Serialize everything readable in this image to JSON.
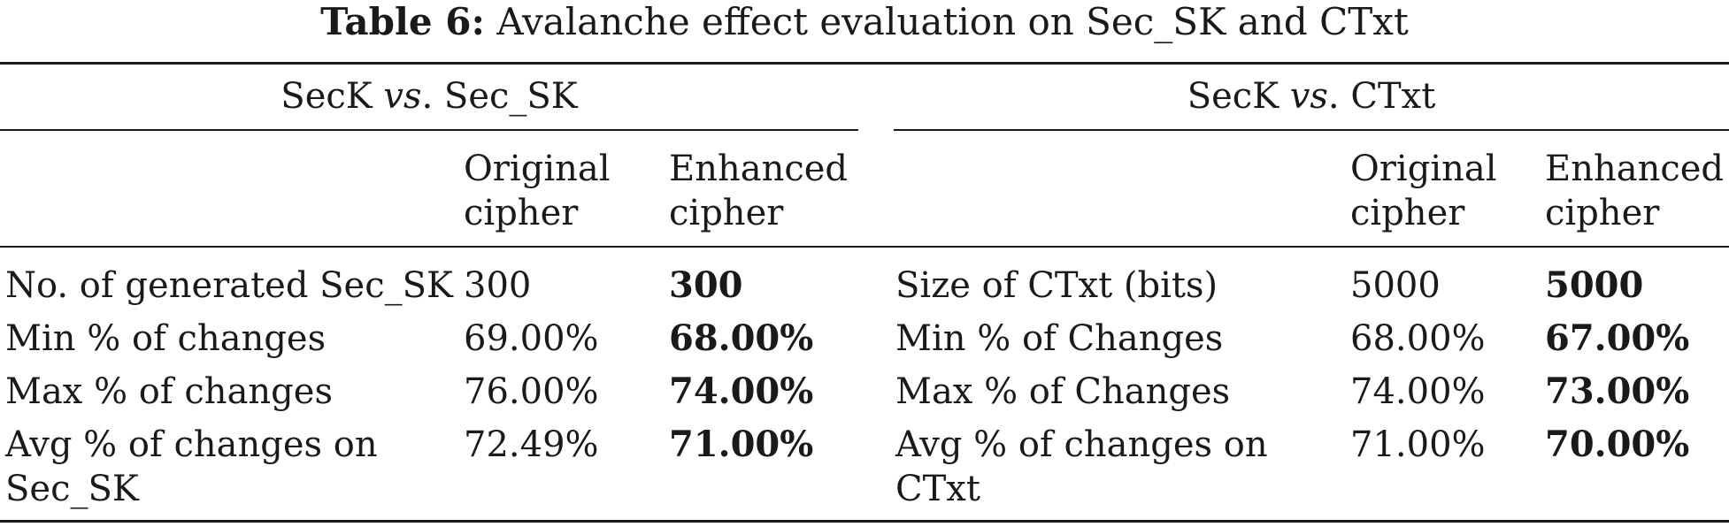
{
  "caption": {
    "label": "Table 6:",
    "text": "Avalanche effect evaluation on Sec_SK and CTxt"
  },
  "left_group": {
    "title_pre": "SecK ",
    "title_vs": "vs",
    "title_post": ". Sec_SK",
    "col_original": [
      "Original",
      "cipher"
    ],
    "col_enhanced": [
      "Enhanced",
      "cipher"
    ],
    "rows": [
      {
        "label": [
          "No. of generated Sec_SK"
        ],
        "original": "300",
        "enhanced": "300"
      },
      {
        "label": [
          "Min % of changes"
        ],
        "original": "69.00%",
        "enhanced": "68.00%"
      },
      {
        "label": [
          "Max % of changes"
        ],
        "original": "76.00%",
        "enhanced": "74.00%"
      },
      {
        "label": [
          "Avg % of changes on",
          "Sec_SK"
        ],
        "original": "72.49%",
        "enhanced": "71.00%"
      }
    ]
  },
  "right_group": {
    "title_pre": "SecK ",
    "title_vs": "vs",
    "title_post": ". CTxt",
    "col_original": [
      "Original",
      "cipher"
    ],
    "col_enhanced": [
      "Enhanced",
      "cipher"
    ],
    "rows": [
      {
        "label": [
          "Size of CTxt (bits)"
        ],
        "original": "5000",
        "enhanced": "5000"
      },
      {
        "label": [
          "Min % of Changes"
        ],
        "original": "68.00%",
        "enhanced": "67.00%"
      },
      {
        "label": [
          "Max % of Changes"
        ],
        "original": "74.00%",
        "enhanced": "73.00%"
      },
      {
        "label": [
          "Avg % of changes on",
          "CTxt"
        ],
        "original": "71.00%",
        "enhanced": "70.00%"
      }
    ]
  }
}
